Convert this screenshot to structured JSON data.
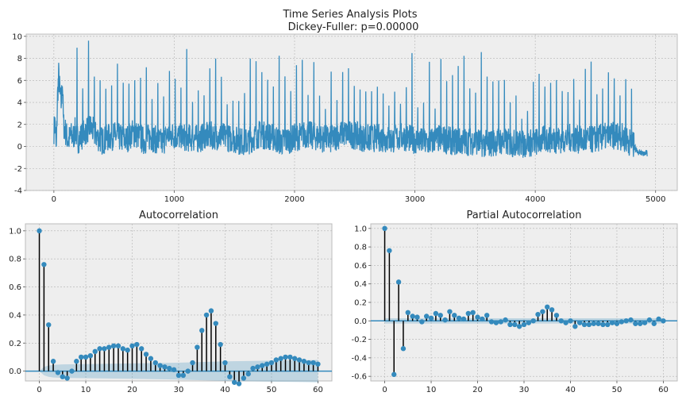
{
  "figure_title": [
    "Time Series Analysis Plots",
    "Dickey-Fuller: p=0.00000"
  ],
  "chart_data": [
    {
      "type": "line",
      "title": "",
      "xlabel": "",
      "ylabel": "",
      "xlim": [
        -230,
        5180
      ],
      "ylim": [
        -4,
        10.2
      ],
      "x_ticks": [
        0,
        1000,
        2000,
        3000,
        4000,
        5000
      ],
      "y_ticks": [
        -4,
        -2,
        0,
        2,
        4,
        6,
        8,
        10
      ],
      "grid": true,
      "color": "#348abd",
      "series": [
        {
          "x": [
            0,
            10,
            20,
            30,
            40,
            50,
            60,
            70,
            80,
            100,
            120,
            140,
            160,
            180,
            200,
            250,
            300,
            350,
            400,
            450,
            500,
            550,
            600,
            650,
            700,
            750,
            800,
            850,
            900,
            950,
            1000,
            1100,
            1200,
            1300,
            1400,
            1500,
            1600,
            1700,
            1800,
            1900,
            2000,
            2100,
            2200,
            2300,
            2400,
            2500,
            2600,
            2700,
            2800,
            2900,
            3000,
            3100,
            3200,
            3300,
            3400,
            3500,
            3600,
            3700,
            3800,
            3900,
            4000,
            4100,
            4200,
            4300,
            4400,
            4500,
            4600,
            4700,
            4800,
            4850,
            4900,
            4930
          ],
          "values": [
            1.5,
            2.2,
            -0.5,
            4.5,
            6.5,
            5.0,
            3.8,
            6.0,
            2.0,
            1.2,
            0.5,
            1.0,
            0.8,
            1.5,
            0.6,
            1.2,
            1.8,
            1.0,
            0.5,
            0.8,
            1.0,
            0.8,
            0.6,
            1.2,
            1.0,
            0.5,
            0.9,
            0.6,
            0.3,
            1.1,
            1.0,
            0.8,
            0.7,
            1.0,
            0.9,
            0.6,
            0.4,
            1.1,
            0.9,
            0.4,
            0.8,
            1.1,
            0.8,
            0.6,
            1.2,
            1.0,
            0.7,
            0.8,
            0.6,
            0.9,
            0.6,
            0.3,
            0.7,
            0.5,
            0.4,
            0.5,
            0.2,
            0.5,
            0.3,
            0.2,
            0.4,
            0.7,
            0.6,
            0.8,
            0.5,
            0.7,
            0.9,
            1.0,
            0.3,
            -0.5,
            -0.6,
            -0.6
          ]
        }
      ]
    },
    {
      "type": "bar",
      "title": "Autocorrelation",
      "xlabel": "",
      "ylabel": "",
      "xlim": [
        -3,
        63
      ],
      "ylim": [
        -0.07,
        1.05
      ],
      "x_ticks": [
        0,
        10,
        20,
        30,
        40,
        50,
        60
      ],
      "y_ticks": [
        0.0,
        0.2,
        0.4,
        0.6,
        0.8,
        1.0
      ],
      "grid": true,
      "lags": [
        0,
        1,
        2,
        3,
        4,
        5,
        6,
        7,
        8,
        9,
        10,
        11,
        12,
        13,
        14,
        15,
        16,
        17,
        18,
        19,
        20,
        21,
        22,
        23,
        24,
        25,
        26,
        27,
        28,
        29,
        30,
        31,
        32,
        33,
        34,
        35,
        36,
        37,
        38,
        39,
        40,
        41,
        42,
        43,
        44,
        45,
        46,
        47,
        48,
        49,
        50,
        51,
        52,
        53,
        54,
        55,
        56,
        57,
        58,
        59,
        60
      ],
      "values": [
        1.0,
        0.76,
        0.33,
        0.07,
        -0.01,
        -0.04,
        -0.05,
        0.0,
        0.07,
        0.1,
        0.1,
        0.11,
        0.14,
        0.16,
        0.16,
        0.17,
        0.18,
        0.18,
        0.16,
        0.15,
        0.18,
        0.19,
        0.16,
        0.12,
        0.09,
        0.06,
        0.04,
        0.03,
        0.02,
        0.01,
        -0.03,
        -0.03,
        0.0,
        0.06,
        0.17,
        0.29,
        0.4,
        0.43,
        0.34,
        0.19,
        0.06,
        -0.04,
        -0.08,
        -0.09,
        -0.05,
        -0.02,
        0.02,
        0.03,
        0.04,
        0.05,
        0.06,
        0.08,
        0.09,
        0.1,
        0.1,
        0.09,
        0.08,
        0.07,
        0.06,
        0.06,
        0.05
      ],
      "confidence_band": {
        "lags": [
          0,
          1,
          2,
          3,
          5,
          10,
          20,
          30,
          35,
          40,
          45,
          50,
          55,
          60
        ],
        "upper": [
          0.0,
          0.03,
          0.04,
          0.045,
          0.048,
          0.05,
          0.055,
          0.06,
          0.065,
          0.07,
          0.072,
          0.075,
          0.077,
          0.08
        ],
        "lower": [
          0.0,
          -0.03,
          -0.04,
          -0.045,
          -0.048,
          -0.05,
          -0.055,
          -0.06,
          -0.065,
          -0.07,
          -0.072,
          -0.075,
          -0.077,
          -0.08
        ]
      },
      "color": "#348abd"
    },
    {
      "type": "bar",
      "title": "Partial Autocorrelation",
      "xlabel": "",
      "ylabel": "",
      "xlim": [
        -3,
        63
      ],
      "ylim": [
        -0.65,
        1.05
      ],
      "x_ticks": [
        0,
        10,
        20,
        30,
        40,
        50,
        60
      ],
      "y_ticks": [
        -0.6,
        -0.4,
        -0.2,
        0.0,
        0.2,
        0.4,
        0.6,
        0.8,
        1.0
      ],
      "grid": true,
      "lags": [
        0,
        1,
        2,
        3,
        4,
        5,
        6,
        7,
        8,
        9,
        10,
        11,
        12,
        13,
        14,
        15,
        16,
        17,
        18,
        19,
        20,
        21,
        22,
        23,
        24,
        25,
        26,
        27,
        28,
        29,
        30,
        31,
        32,
        33,
        34,
        35,
        36,
        37,
        38,
        39,
        40,
        41,
        42,
        43,
        44,
        45,
        46,
        47,
        48,
        49,
        50,
        51,
        52,
        53,
        54,
        55,
        56,
        57,
        58,
        59,
        60
      ],
      "values": [
        1.0,
        0.76,
        -0.58,
        0.42,
        -0.3,
        0.09,
        0.05,
        0.04,
        -0.01,
        0.05,
        0.03,
        0.08,
        0.06,
        0.01,
        0.1,
        0.06,
        0.03,
        0.02,
        0.08,
        0.09,
        0.04,
        0.02,
        0.06,
        -0.01,
        -0.02,
        -0.01,
        0.01,
        -0.04,
        -0.04,
        -0.06,
        -0.04,
        -0.02,
        0.0,
        0.07,
        0.1,
        0.15,
        0.12,
        0.06,
        0.0,
        -0.02,
        0.0,
        -0.06,
        -0.02,
        -0.04,
        -0.04,
        -0.03,
        -0.03,
        -0.04,
        -0.04,
        -0.02,
        -0.03,
        -0.01,
        0.0,
        0.01,
        -0.03,
        -0.03,
        -0.02,
        0.01,
        -0.03,
        0.02,
        0.0
      ],
      "confidence_band": {
        "lags": [
          0,
          60
        ],
        "upper": [
          0.028,
          0.028
        ],
        "lower": [
          -0.028,
          -0.028
        ]
      },
      "color": "#348abd"
    }
  ]
}
